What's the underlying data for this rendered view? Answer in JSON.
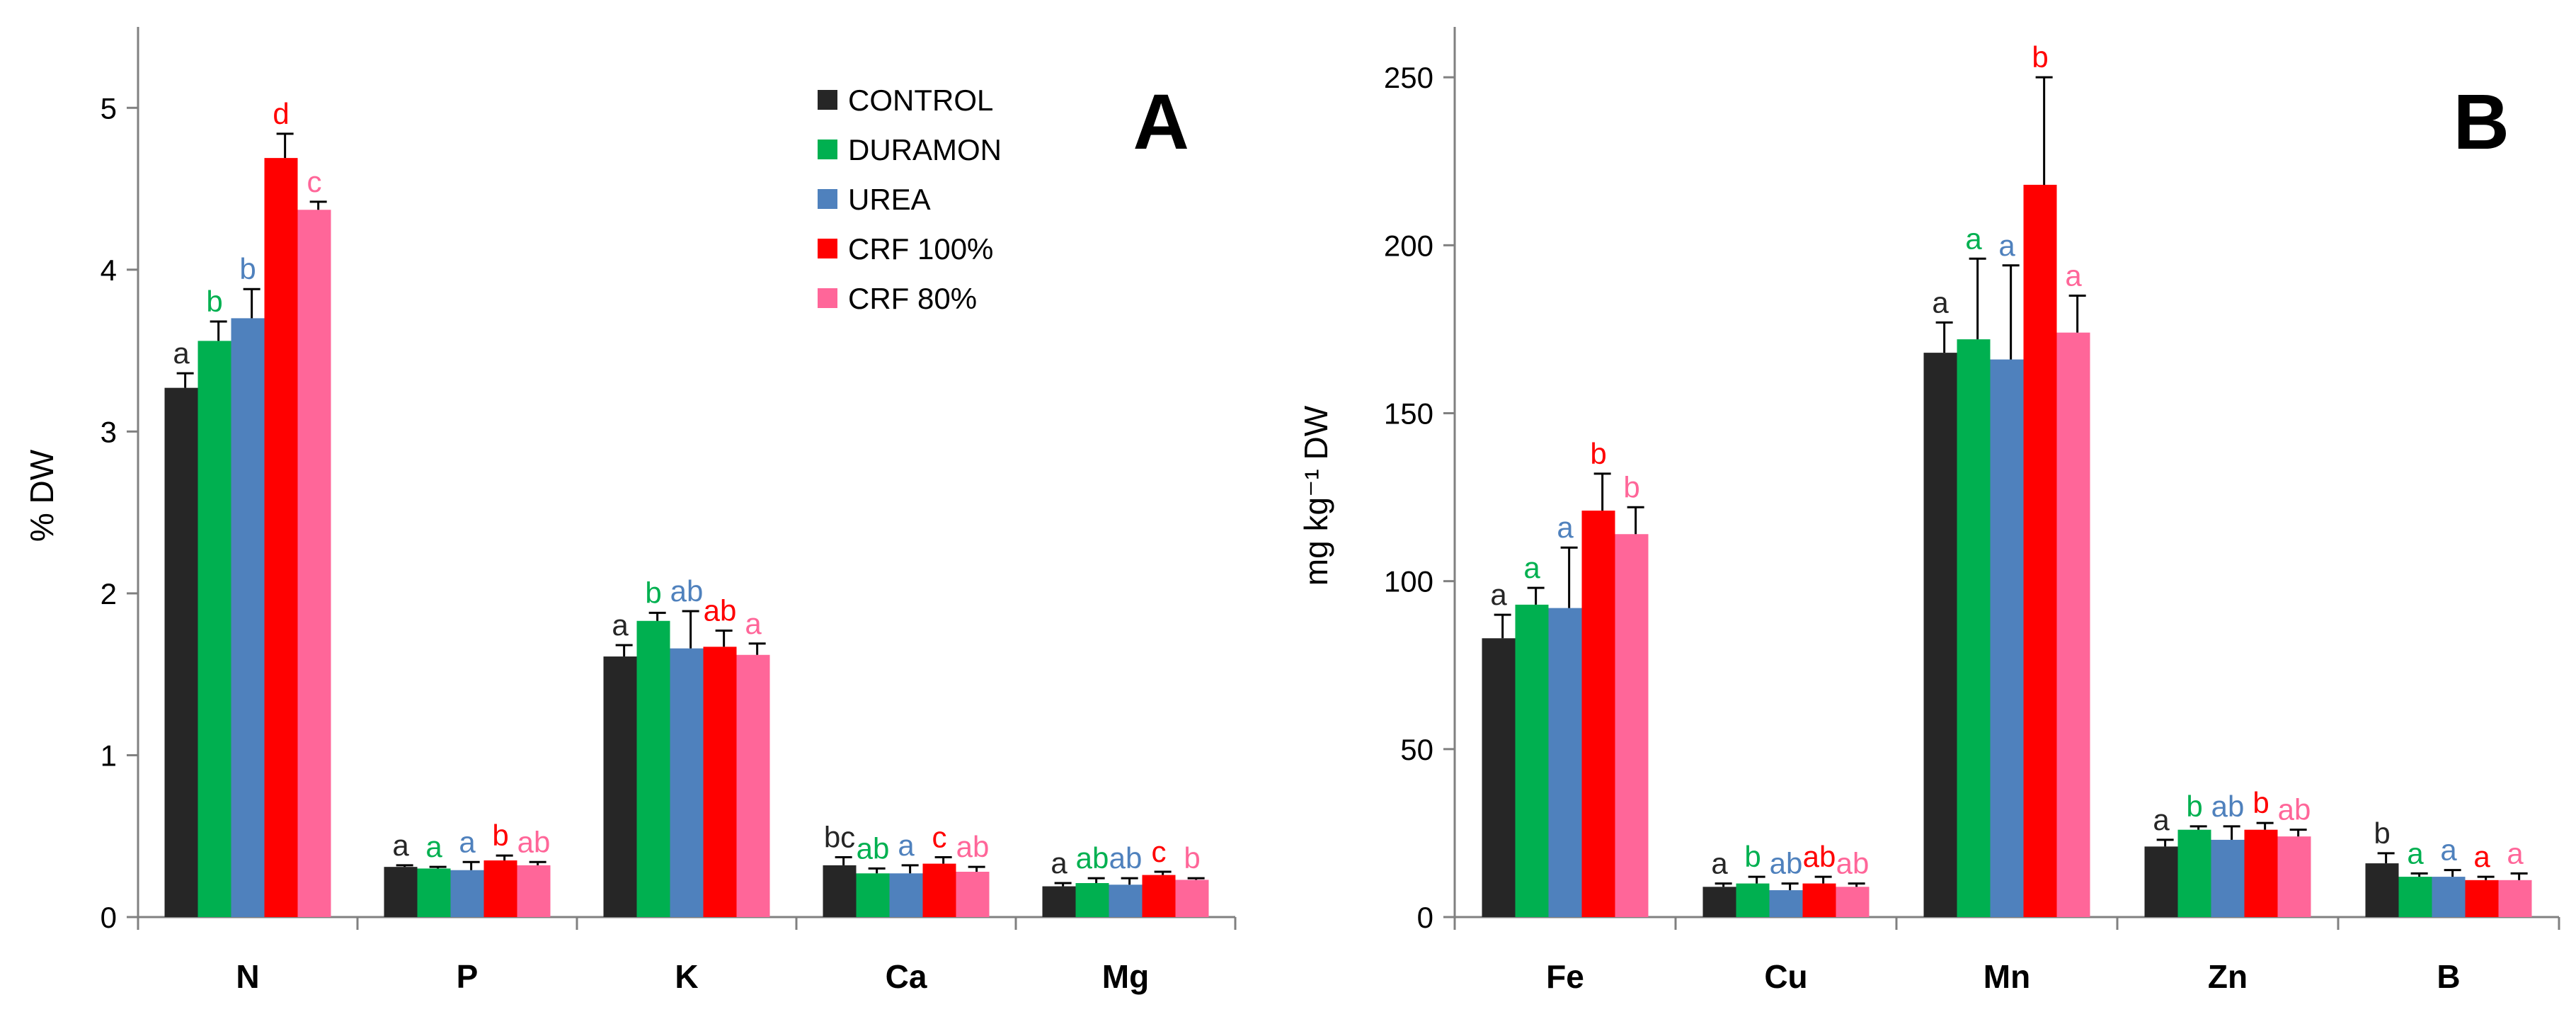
{
  "colors": {
    "CONTROL": "#262626",
    "DURAMON": "#00b050",
    "UREA": "#4f81bd",
    "CRF100": "#ff0000",
    "CRF80": "#ff6699"
  },
  "legend": [
    "CONTROL",
    "DURAMON",
    "UREA",
    "CRF 100%",
    "CRF 80%"
  ],
  "chart_data": [
    {
      "type": "bar",
      "panel": "A",
      "ylabel": "% DW",
      "ylim": [
        0,
        5.5
      ],
      "yticks": [
        "0",
        "1",
        "2",
        "3",
        "4",
        "5"
      ],
      "categories": [
        "N",
        "P",
        "K",
        "Ca",
        "Mg"
      ],
      "series": [
        {
          "name": "CONTROL",
          "values": [
            3.27,
            0.31,
            1.61,
            0.32,
            0.19
          ],
          "errors": [
            0.09,
            0.01,
            0.07,
            0.05,
            0.02
          ],
          "letters": [
            "a",
            "a",
            "a",
            "bc",
            "a"
          ]
        },
        {
          "name": "DURAMON",
          "values": [
            3.56,
            0.3,
            1.83,
            0.27,
            0.21
          ],
          "errors": [
            0.12,
            0.01,
            0.05,
            0.03,
            0.03
          ],
          "letters": [
            "b",
            "a",
            "b",
            "ab",
            "ab"
          ]
        },
        {
          "name": "UREA",
          "values": [
            3.7,
            0.29,
            1.66,
            0.27,
            0.2
          ],
          "errors": [
            0.18,
            0.05,
            0.23,
            0.05,
            0.04
          ],
          "letters": [
            "b",
            "a",
            "ab",
            "a",
            "ab"
          ]
        },
        {
          "name": "CRF 100%",
          "values": [
            4.69,
            0.35,
            1.67,
            0.33,
            0.26
          ],
          "errors": [
            0.15,
            0.03,
            0.1,
            0.04,
            0.02
          ],
          "letters": [
            "d",
            "b",
            "ab",
            "c",
            "c"
          ]
        },
        {
          "name": "CRF 80%",
          "values": [
            4.37,
            0.32,
            1.62,
            0.28,
            0.23
          ],
          "errors": [
            0.05,
            0.02,
            0.07,
            0.03,
            0.01
          ],
          "letters": [
            "c",
            "ab",
            "a",
            "ab",
            "b"
          ]
        }
      ]
    },
    {
      "type": "bar",
      "panel": "B",
      "ylabel": "mg kg⁻¹ DW",
      "ylim": [
        0,
        265
      ],
      "yticks": [
        "0",
        "50",
        "100",
        "150",
        "200",
        "250"
      ],
      "categories": [
        "Fe",
        "Cu",
        "Mn",
        "Zn",
        "B"
      ],
      "series": [
        {
          "name": "CONTROL",
          "values": [
            83,
            9,
            168,
            21,
            16
          ],
          "errors": [
            7,
            1,
            9,
            2,
            3
          ],
          "letters": [
            "a",
            "a",
            "a",
            "a",
            "b"
          ]
        },
        {
          "name": "DURAMON",
          "values": [
            93,
            10,
            172,
            26,
            12
          ],
          "errors": [
            5,
            2,
            24,
            1,
            1
          ],
          "letters": [
            "a",
            "b",
            "a",
            "b",
            "a"
          ]
        },
        {
          "name": "UREA",
          "values": [
            92,
            8,
            166,
            23,
            12
          ],
          "errors": [
            18,
            2,
            28,
            4,
            2
          ],
          "letters": [
            "a",
            "ab",
            "a",
            "ab",
            "a"
          ]
        },
        {
          "name": "CRF 100%",
          "values": [
            121,
            10,
            218,
            26,
            11
          ],
          "errors": [
            11,
            2,
            32,
            2,
            1
          ],
          "letters": [
            "b",
            "ab",
            "b",
            "b",
            "a"
          ]
        },
        {
          "name": "CRF 80%",
          "values": [
            114,
            9,
            174,
            24,
            11
          ],
          "errors": [
            8,
            1,
            11,
            2,
            2
          ],
          "letters": [
            "b",
            "ab",
            "a",
            "ab",
            "a"
          ]
        }
      ]
    }
  ]
}
